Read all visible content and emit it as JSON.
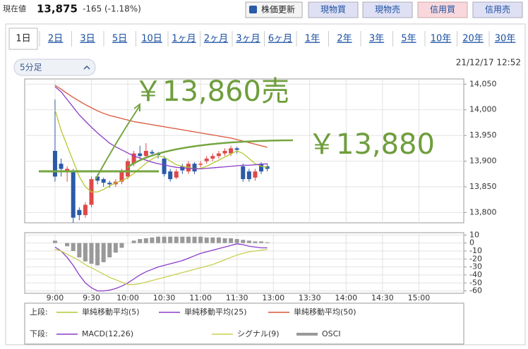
{
  "header": {
    "label": "現在値",
    "price": "13,875",
    "change": "-165 (-1.18%)",
    "buttons": [
      "株価更新",
      "現物買",
      "現物売",
      "信用買",
      "信用売"
    ]
  },
  "tabs": [
    "1日",
    "2日",
    "3日",
    "5日",
    "10日",
    "1ヶ月",
    "2ヶ月",
    "3ヶ月",
    "6ヶ月",
    "1年",
    "2年",
    "3年",
    "5年",
    "10年",
    "20年",
    "30年"
  ],
  "interval": "5分足",
  "timestamp": "21/12/17 12:52",
  "annotations": [
    "￥13,860売",
    "￥13,880"
  ],
  "legend": {
    "upper": "上段:",
    "lower": "下段:"
  },
  "chart_data": [
    {
      "type": "candlestick",
      "up_color": "#e04848",
      "down_color": "#2a5aa8",
      "x": [
        540,
        545,
        550,
        555,
        560,
        565,
        570,
        575,
        580,
        585,
        590,
        595,
        600,
        605,
        610,
        615,
        620,
        625,
        630,
        635,
        640,
        645,
        650,
        655,
        660,
        665,
        670,
        675,
        680,
        685,
        690,
        695,
        700,
        705,
        710,
        715
      ],
      "open": [
        13920,
        13895,
        13880,
        13880,
        13805,
        13795,
        13815,
        13870,
        13865,
        13858,
        13855,
        13860,
        13870,
        13895,
        13915,
        13910,
        13918,
        13915,
        13905,
        13880,
        13868,
        13890,
        13880,
        13895,
        13893,
        13900,
        13905,
        13910,
        13915,
        13915,
        13925,
        13890,
        13880,
        13868,
        13895,
        13890
      ],
      "high": [
        14020,
        13905,
        13890,
        13885,
        13810,
        13820,
        13870,
        13875,
        13868,
        13862,
        13865,
        13885,
        13905,
        13920,
        13930,
        13935,
        13922,
        13918,
        13910,
        13885,
        13885,
        13895,
        13900,
        13898,
        13900,
        13910,
        13915,
        13920,
        13925,
        13930,
        13928,
        13895,
        13885,
        13885,
        13898,
        13895
      ],
      "low": [
        13860,
        13870,
        13860,
        13780,
        13785,
        13790,
        13810,
        13855,
        13850,
        13848,
        13850,
        13855,
        13865,
        13890,
        13905,
        13905,
        13910,
        13905,
        13870,
        13860,
        13865,
        13875,
        13875,
        13875,
        13888,
        13895,
        13900,
        13905,
        13910,
        13910,
        13915,
        13860,
        13860,
        13862,
        13875,
        13880
      ],
      "close": [
        13870,
        13885,
        13885,
        13790,
        13795,
        13815,
        13865,
        13862,
        13858,
        13855,
        13860,
        13880,
        13900,
        13915,
        13910,
        13920,
        13915,
        13912,
        13875,
        13865,
        13880,
        13882,
        13895,
        13880,
        13895,
        13905,
        13910,
        13915,
        13920,
        13925,
        13922,
        13865,
        13865,
        13880,
        13880,
        13885
      ],
      "series": [
        {
          "name": "単純移動平均(5)",
          "color": "#b5c832",
          "values": [
            14000,
            13960,
            13930,
            13900,
            13870,
            13850,
            13840,
            13840,
            13845,
            13852,
            13858,
            13862,
            13868,
            13876,
            13886,
            13896,
            13904,
            13910,
            13908,
            13900,
            13893,
            13890,
            13888,
            13885,
            13886,
            13890,
            13896,
            13902,
            13908,
            13914,
            13920,
            13915,
            13905,
            13895,
            13890,
            13888
          ]
        },
        {
          "name": "単純移動平均(25)",
          "color": "#8a3cc8",
          "values": [
            14045,
            14035,
            14020,
            14005,
            13990,
            13978,
            13966,
            13955,
            13945,
            13935,
            13928,
            13922,
            13916,
            13910,
            13906,
            13902,
            13898,
            13895,
            13893,
            13890,
            13888,
            13887,
            13886,
            13885,
            13885,
            13886,
            13887,
            13888,
            13889,
            13890,
            13891,
            13892,
            13892,
            13893,
            13894,
            13895
          ]
        },
        {
          "name": "単純移動平均(50)",
          "color": "#d8553a",
          "values": [
            14048,
            14040,
            14032,
            14024,
            14017,
            14010,
            14004,
            13998,
            13993,
            13989,
            13986,
            13983,
            13980,
            13977,
            13975,
            13973,
            13971,
            13969,
            13967,
            13965,
            13963,
            13961,
            13959,
            13957,
            13955,
            13953,
            13951,
            13949,
            13947,
            13945,
            13942,
            13939,
            13936,
            13933,
            13930,
            13927
          ]
        }
      ],
      "xlim": [
        515,
        877
      ],
      "xticks": [
        {
          "value": 540,
          "label": "9:00"
        },
        {
          "value": 570,
          "label": "9:30"
        },
        {
          "value": 600,
          "label": "10:00"
        },
        {
          "value": 630,
          "label": "10:30"
        },
        {
          "value": 660,
          "label": "11:00"
        },
        {
          "value": 690,
          "label": "11:30"
        },
        {
          "value": 720,
          "label": "13:00"
        },
        {
          "value": 750,
          "label": "13:30"
        },
        {
          "value": 780,
          "label": "14:00"
        },
        {
          "value": 810,
          "label": "14:30"
        },
        {
          "value": 840,
          "label": "15:00"
        }
      ],
      "ylim": [
        13780,
        14060
      ],
      "yticks": [
        {
          "value": 13800,
          "label": "13,800"
        },
        {
          "value": 13850,
          "label": "13,850"
        },
        {
          "value": 13900,
          "label": "13,900"
        },
        {
          "value": 13950,
          "label": "13,950"
        },
        {
          "value": 14000,
          "label": "14,000"
        },
        {
          "value": 14050,
          "label": "14,050"
        }
      ],
      "grid": true
    },
    {
      "type": "macd",
      "series": [
        {
          "name": "MACD(12,26)",
          "color": "#8a3cc8",
          "style": "line",
          "values": [
            -5,
            -10,
            -18,
            -28,
            -40,
            -50,
            -56,
            -60,
            -60,
            -59,
            -57,
            -54,
            -50,
            -45,
            -40,
            -36,
            -33,
            -30,
            -28,
            -26,
            -24,
            -22,
            -19,
            -16,
            -13,
            -11,
            -9,
            -7,
            -5,
            -3,
            -1,
            -2,
            -4,
            -5,
            -6,
            -6
          ]
        },
        {
          "name": "シグナル(9)",
          "color": "#c8d050",
          "style": "line",
          "values": [
            -8,
            -10,
            -14,
            -18,
            -22,
            -27,
            -31,
            -35,
            -39,
            -43,
            -46,
            -49,
            -52,
            -52,
            -51,
            -49,
            -47,
            -45,
            -43,
            -41,
            -39,
            -37,
            -35,
            -33,
            -31,
            -29,
            -27,
            -24,
            -21,
            -18,
            -15,
            -13,
            -11,
            -10,
            -9,
            -8
          ]
        },
        {
          "name": "OSCI",
          "color": "#999999",
          "style": "bar",
          "values": [
            3,
            0,
            -4,
            -10,
            -18,
            -23,
            -26,
            -28,
            -24,
            -18,
            -12,
            -6,
            0,
            3,
            5,
            6,
            7,
            8,
            8,
            8,
            8,
            8,
            8,
            8,
            8,
            7,
            7,
            7,
            6,
            6,
            5,
            4,
            3,
            2,
            2,
            1
          ]
        }
      ],
      "ylim": [
        -63,
        13
      ],
      "yticks": [
        -60,
        -50,
        -40,
        -30,
        -20,
        -10,
        0,
        10
      ],
      "grid": true
    }
  ]
}
